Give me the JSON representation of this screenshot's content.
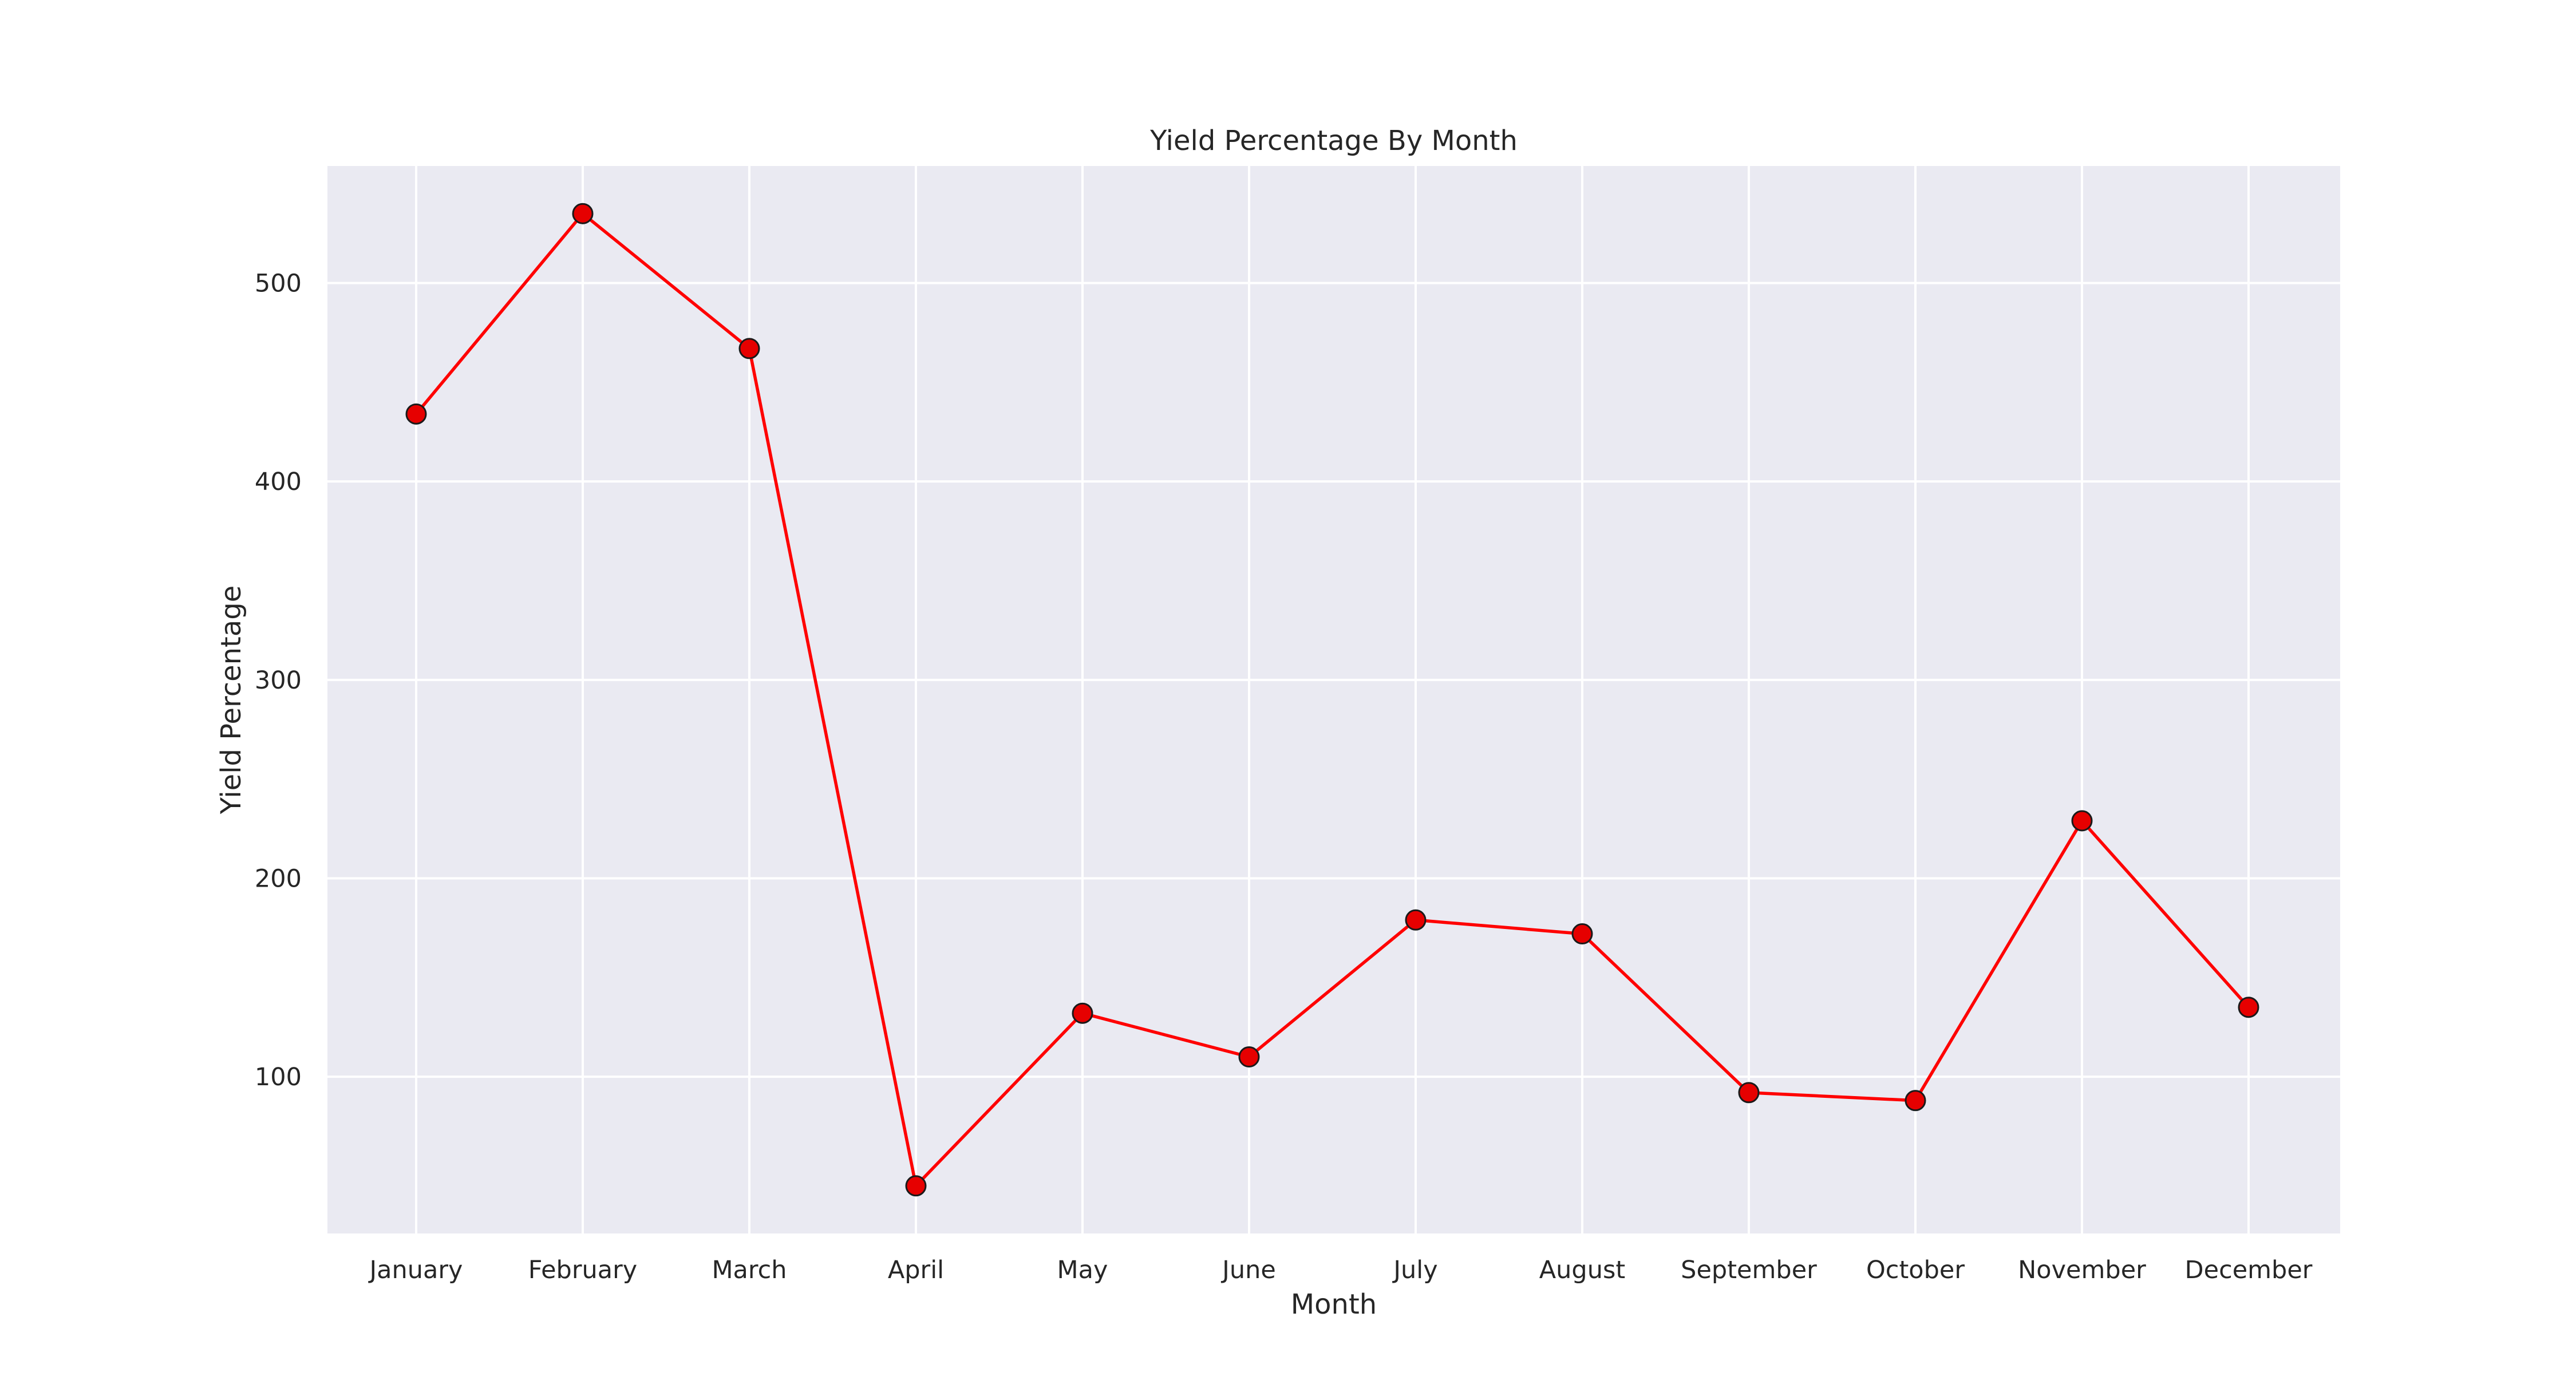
{
  "chart_data": {
    "type": "line",
    "title": "Yield Percentage By Month",
    "xlabel": "Month",
    "ylabel": "Yield Percentage",
    "categories": [
      "January",
      "February",
      "March",
      "April",
      "May",
      "June",
      "July",
      "August",
      "September",
      "October",
      "November",
      "December"
    ],
    "series": [
      {
        "values": [
          434,
          535,
          467,
          45,
          132,
          110,
          179,
          172,
          92,
          88,
          229,
          135
        ]
      }
    ],
    "ylim": [
      21,
      559
    ],
    "yticks": [
      100,
      200,
      300,
      400,
      500
    ],
    "grid": true,
    "legend": "none",
    "colors": {
      "background": "#eaeaf2",
      "grid": "#ffffff",
      "line": "#ff0000",
      "marker_fill": "#e60000",
      "marker_edge": "#1a1a1a",
      "text": "#262626"
    }
  }
}
